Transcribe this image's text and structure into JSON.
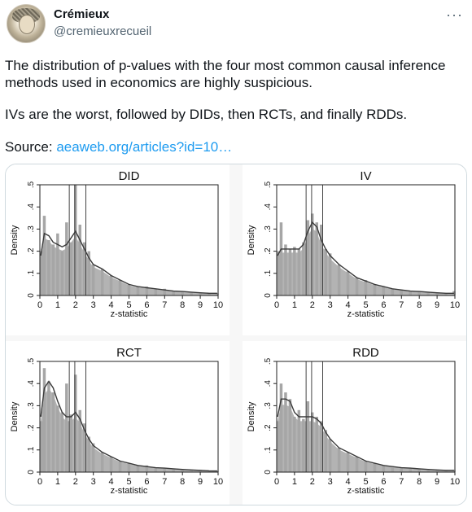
{
  "author": {
    "name": "Crémieux",
    "handle": "@cremieuxrecueil",
    "avatar_icon": "portrait-avatar-icon"
  },
  "more_icon": "more-options-icon",
  "more_glyph": "···",
  "post": {
    "paragraph1": "The distribution of p-values with the four most common causal inference methods used in economics are highly suspicious.",
    "paragraph2": "IVs are the worst, followed by DIDs, then RCTs, and finally RDDs.",
    "source_prefix": "Source: ",
    "source_link": "aeaweb.org/articles?id=10…"
  },
  "colors": {
    "link": "#1d9bf0",
    "bars": "#a6a6a6",
    "density_line": "#3a3a3a"
  },
  "chart_data": [
    {
      "type": "bar",
      "title": "DID",
      "xlabel": "z-statistic",
      "ylabel": "Density",
      "xlim": [
        0,
        10
      ],
      "ylim": [
        0,
        0.5
      ],
      "xticks": [
        "0",
        "1",
        "2",
        "3",
        "4",
        "5",
        "6",
        "7",
        "8",
        "9",
        "10"
      ],
      "yticks": [
        "0",
        ".1",
        ".2",
        ".3",
        ".4",
        ".5"
      ],
      "reference_lines": [
        1.65,
        1.96,
        2.58
      ],
      "bar_width": 0.1,
      "x": [
        0.05,
        0.25,
        0.5,
        0.75,
        1.0,
        1.25,
        1.5,
        1.75,
        2.0,
        2.25,
        2.5,
        2.75,
        3.0,
        3.5,
        4.0,
        4.5,
        5.0,
        5.5,
        6.0,
        6.5,
        7.0,
        7.5,
        8.0,
        8.5,
        9.0,
        9.5,
        9.95
      ],
      "values": [
        0.2,
        0.36,
        0.25,
        0.23,
        0.28,
        0.2,
        0.33,
        0.24,
        0.5,
        0.32,
        0.24,
        0.2,
        0.14,
        0.12,
        0.09,
        0.07,
        0.05,
        0.04,
        0.04,
        0.03,
        0.03,
        0.02,
        0.02,
        0.015,
        0.01,
        0.01,
        0.01
      ],
      "density": [
        0.18,
        0.28,
        0.27,
        0.24,
        0.23,
        0.22,
        0.23,
        0.26,
        0.29,
        0.25,
        0.21,
        0.17,
        0.14,
        0.12,
        0.09,
        0.07,
        0.05,
        0.04,
        0.035,
        0.03,
        0.025,
        0.02,
        0.018,
        0.015,
        0.012,
        0.01,
        0.01
      ]
    },
    {
      "type": "bar",
      "title": "IV",
      "xlabel": "z-statistic",
      "ylabel": "Density",
      "xlim": [
        0,
        10
      ],
      "ylim": [
        0,
        0.5
      ],
      "xticks": [
        "0",
        "1",
        "2",
        "3",
        "4",
        "5",
        "6",
        "7",
        "8",
        "9",
        "10"
      ],
      "yticks": [
        "0",
        ".1",
        ".2",
        ".3",
        ".4",
        ".5"
      ],
      "reference_lines": [
        1.65,
        1.96,
        2.58
      ],
      "bar_width": 0.1,
      "x": [
        0.05,
        0.25,
        0.5,
        0.75,
        1.0,
        1.25,
        1.5,
        1.75,
        2.0,
        2.25,
        2.5,
        2.75,
        3.0,
        3.5,
        4.0,
        4.5,
        5.0,
        5.5,
        6.0,
        6.5,
        7.0,
        7.5,
        8.0,
        8.5,
        9.0,
        9.5,
        9.95
      ],
      "values": [
        0.2,
        0.33,
        0.23,
        0.21,
        0.22,
        0.21,
        0.24,
        0.34,
        0.37,
        0.33,
        0.32,
        0.21,
        0.19,
        0.14,
        0.11,
        0.08,
        0.07,
        0.05,
        0.04,
        0.03,
        0.025,
        0.02,
        0.02,
        0.015,
        0.01,
        0.01,
        0.02
      ],
      "density": [
        0.18,
        0.21,
        0.21,
        0.21,
        0.21,
        0.21,
        0.23,
        0.29,
        0.33,
        0.31,
        0.25,
        0.21,
        0.18,
        0.14,
        0.11,
        0.08,
        0.065,
        0.05,
        0.04,
        0.03,
        0.025,
        0.02,
        0.018,
        0.015,
        0.012,
        0.01,
        0.01
      ]
    },
    {
      "type": "bar",
      "title": "RCT",
      "xlabel": "z-statistic",
      "ylabel": "Density",
      "xlim": [
        0,
        10
      ],
      "ylim": [
        0,
        0.5
      ],
      "xticks": [
        "0",
        "1",
        "2",
        "3",
        "4",
        "5",
        "6",
        "7",
        "8",
        "9",
        "10"
      ],
      "yticks": [
        "0",
        ".1",
        ".2",
        ".3",
        ".4",
        ".5"
      ],
      "reference_lines": [
        1.65,
        1.96,
        2.58
      ],
      "bar_width": 0.1,
      "x": [
        0.05,
        0.25,
        0.5,
        0.75,
        1.0,
        1.25,
        1.5,
        1.75,
        2.0,
        2.25,
        2.5,
        2.75,
        3.0,
        3.5,
        4.0,
        4.5,
        5.0,
        5.5,
        6.0,
        6.5,
        7.0,
        7.5,
        8.0,
        8.5,
        9.0,
        9.5,
        9.95
      ],
      "values": [
        0.23,
        0.47,
        0.41,
        0.36,
        0.3,
        0.27,
        0.4,
        0.26,
        0.44,
        0.28,
        0.22,
        0.16,
        0.13,
        0.09,
        0.07,
        0.05,
        0.04,
        0.03,
        0.03,
        0.02,
        0.02,
        0.015,
        0.01,
        0.01,
        0.01,
        0.005,
        0.005
      ],
      "density": [
        0.25,
        0.38,
        0.41,
        0.38,
        0.32,
        0.27,
        0.25,
        0.25,
        0.27,
        0.24,
        0.19,
        0.15,
        0.12,
        0.09,
        0.07,
        0.05,
        0.04,
        0.03,
        0.025,
        0.02,
        0.018,
        0.015,
        0.012,
        0.01,
        0.008,
        0.006,
        0.005
      ]
    },
    {
      "type": "bar",
      "title": "RDD",
      "xlabel": "z-statistic",
      "ylabel": "Density",
      "xlim": [
        0,
        10
      ],
      "ylim": [
        0,
        0.5
      ],
      "xticks": [
        "0",
        "1",
        "2",
        "3",
        "4",
        "5",
        "6",
        "7",
        "8",
        "9",
        "10"
      ],
      "yticks": [
        "0",
        ".1",
        ".2",
        ".3",
        ".4",
        ".5"
      ],
      "reference_lines": [
        1.65,
        1.96,
        2.58
      ],
      "bar_width": 0.1,
      "x": [
        0.05,
        0.25,
        0.5,
        0.75,
        1.0,
        1.25,
        1.5,
        1.75,
        2.0,
        2.25,
        2.5,
        2.75,
        3.0,
        3.5,
        4.0,
        4.5,
        5.0,
        5.5,
        6.0,
        6.5,
        7.0,
        7.5,
        8.0,
        8.5,
        9.0,
        9.5,
        9.95
      ],
      "values": [
        0.23,
        0.4,
        0.36,
        0.33,
        0.25,
        0.28,
        0.24,
        0.32,
        0.27,
        0.25,
        0.23,
        0.19,
        0.15,
        0.11,
        0.09,
        0.07,
        0.05,
        0.04,
        0.03,
        0.02,
        0.02,
        0.02,
        0.015,
        0.01,
        0.01,
        0.01,
        0.01
      ],
      "density": [
        0.25,
        0.33,
        0.33,
        0.32,
        0.27,
        0.25,
        0.25,
        0.25,
        0.25,
        0.24,
        0.22,
        0.18,
        0.15,
        0.11,
        0.09,
        0.07,
        0.05,
        0.04,
        0.03,
        0.025,
        0.02,
        0.018,
        0.015,
        0.012,
        0.01,
        0.008,
        0.008
      ]
    }
  ]
}
